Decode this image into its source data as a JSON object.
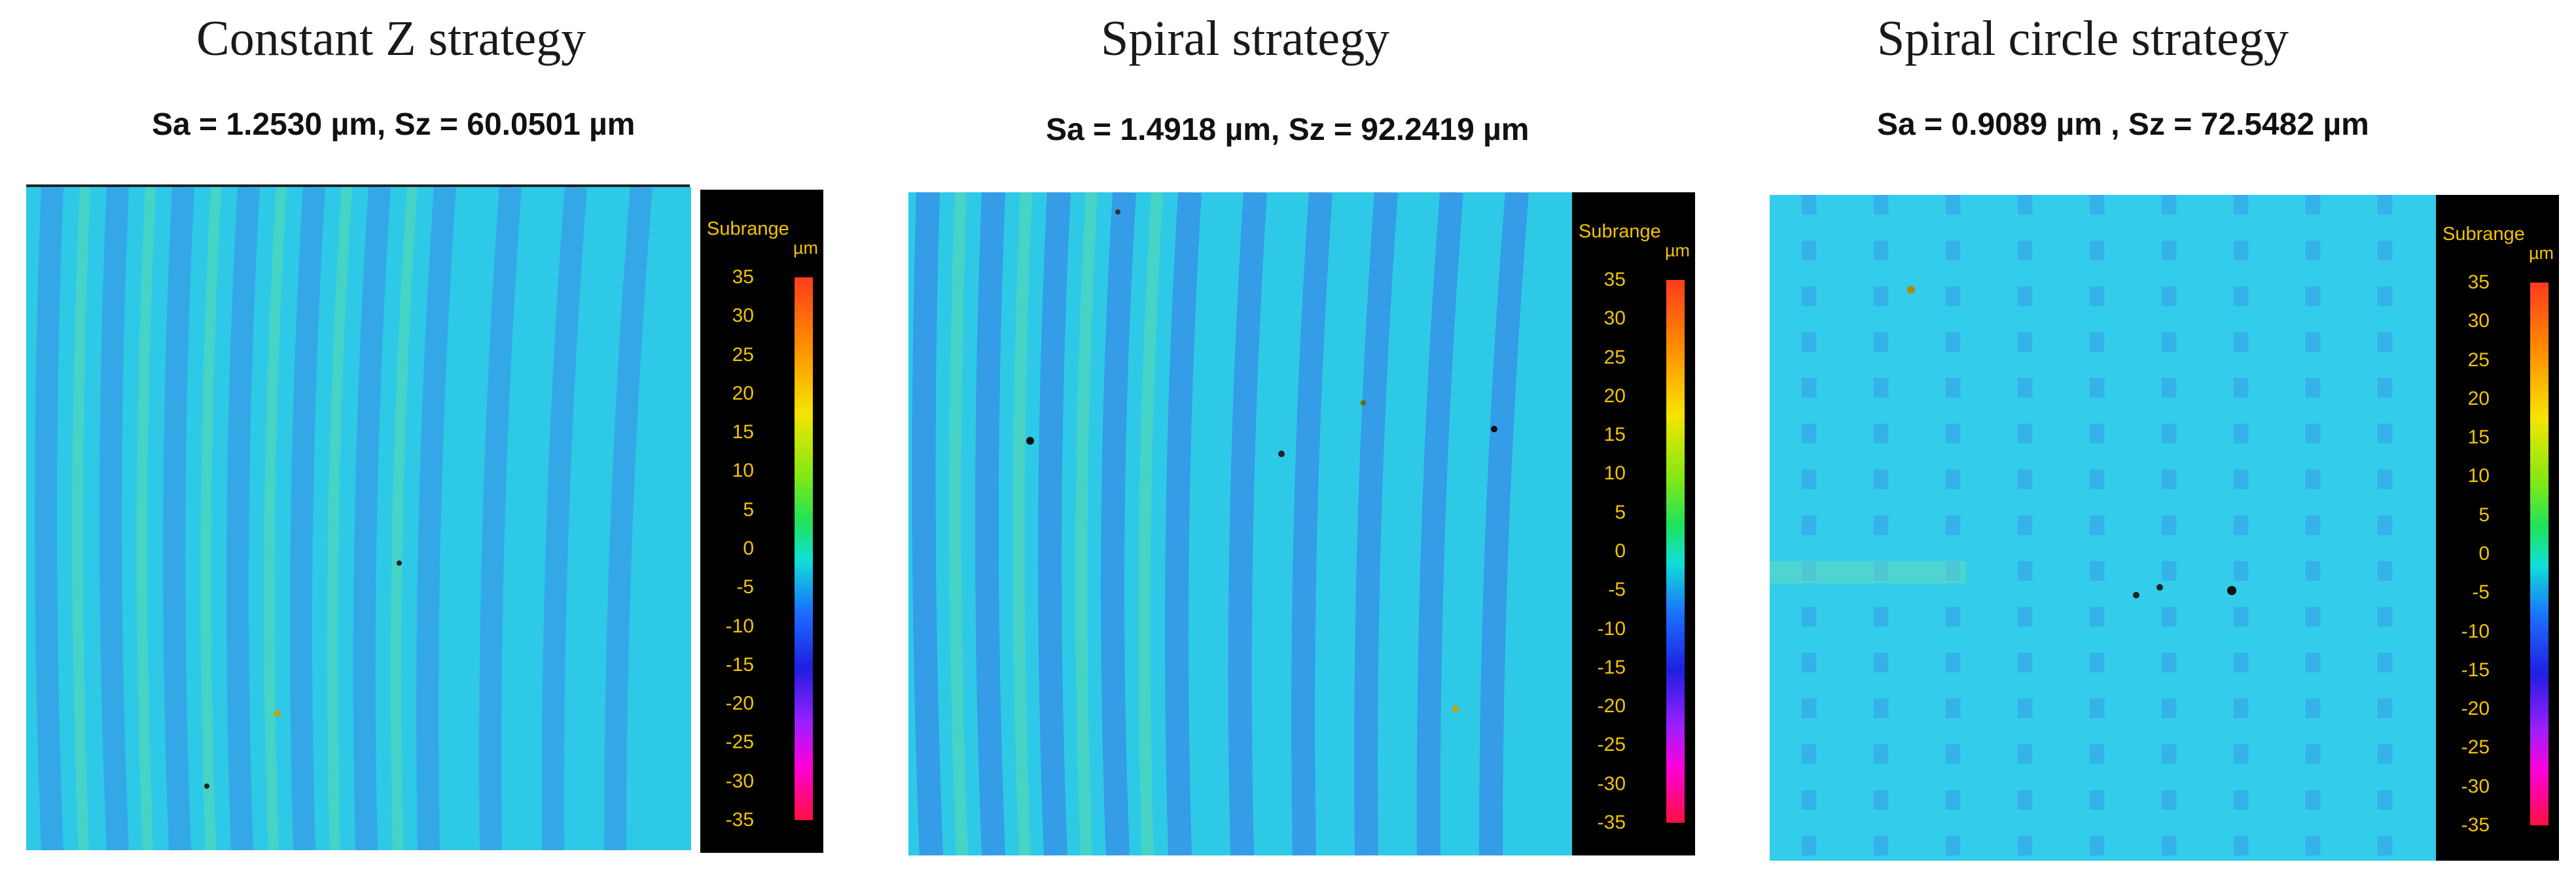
{
  "panels": [
    {
      "title": "Constant Z strategy",
      "subtitle": "Sa = 1.2530 µm, Sz = 60.0501 µm"
    },
    {
      "title": "Spiral strategy",
      "subtitle": "Sa = 1.4918 µm, Sz = 92.2419 µm"
    },
    {
      "title": "Spiral circle strategy",
      "subtitle": "Sa = 0.9089 µm , Sz = 72.5482 µm"
    }
  ],
  "colorbar": {
    "label": "Subrange",
    "unit": "µm",
    "ticks": [
      "35",
      "30",
      "25",
      "20",
      "15",
      "10",
      "5",
      "0",
      "-5",
      "-10",
      "-15",
      "-20",
      "-25",
      "-30",
      "-35"
    ],
    "colors": {
      "top": "#ff3b1e",
      "zero": "#10e0d6",
      "bottom": "#ff1040",
      "surface": "#2ec9e6"
    }
  }
}
